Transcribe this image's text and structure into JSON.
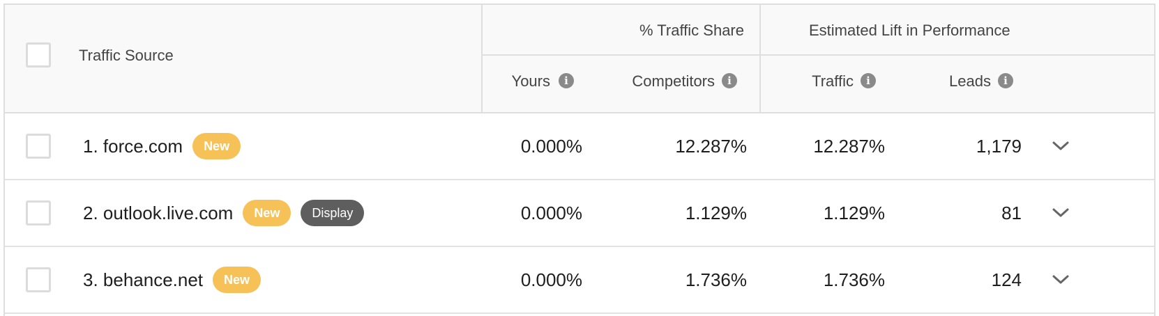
{
  "header": {
    "traffic_source": "Traffic Source",
    "traffic_share_group": "% Traffic Share",
    "lift_group": "Estimated Lift in Performance",
    "yours": "Yours",
    "competitors": "Competitors",
    "traffic": "Traffic",
    "leads": "Leads",
    "info_icon": "info-icon"
  },
  "rows": [
    {
      "source": "1. force.com",
      "badges": [
        "New"
      ],
      "yours": "0.000%",
      "competitors": "12.287%",
      "traffic": "12.287%",
      "leads": "1,179"
    },
    {
      "source": "2. outlook.live.com",
      "badges": [
        "New",
        "Display"
      ],
      "yours": "0.000%",
      "competitors": "1.129%",
      "traffic": "1.129%",
      "leads": "81"
    },
    {
      "source": "3. behance.net",
      "badges": [
        "New"
      ],
      "yours": "0.000%",
      "competitors": "1.736%",
      "traffic": "1.736%",
      "leads": "124"
    }
  ],
  "colors": {
    "badge_new": "#f6c157",
    "badge_display": "#5e5e5e",
    "header_bg": "#f9f9f9",
    "border": "#dedede"
  }
}
